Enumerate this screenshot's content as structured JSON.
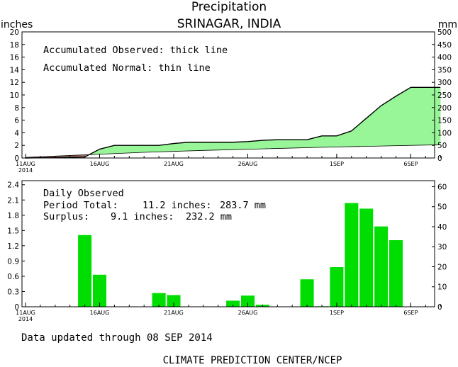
{
  "header": {
    "title": "Precipitation",
    "subtitle": "SRINAGAR, INDIA"
  },
  "colors": {
    "observed_fill": "#98f598",
    "deficit_fill": "#b07a6e",
    "daily_bar": "#00dd00",
    "axis": "#000000"
  },
  "chart_data": [
    {
      "type": "area",
      "name": "accumulated",
      "ylabel_left": "inches",
      "ylabel_right": "mm",
      "left_ticks": [
        "0",
        "2",
        "4",
        "6",
        "8",
        "10",
        "12",
        "14",
        "16",
        "18",
        "20"
      ],
      "right_ticks": [
        "0",
        "50",
        "100",
        "150",
        "200",
        "250",
        "300",
        "350",
        "400",
        "450",
        "500"
      ],
      "ylim_inches": [
        0,
        20
      ],
      "ylim_mm": [
        0,
        500
      ],
      "x_ticks": [
        {
          "day": 0,
          "label": "11AUG",
          "sub": "2014"
        },
        {
          "day": 5,
          "label": "16AUG",
          "sub": ""
        },
        {
          "day": 10,
          "label": "21AUG",
          "sub": ""
        },
        {
          "day": 15,
          "label": "26AUG",
          "sub": ""
        },
        {
          "day": 21,
          "label": "1SEP",
          "sub": ""
        },
        {
          "day": 26,
          "label": "6SEP",
          "sub": ""
        }
      ],
      "annotations": [
        "Accumulated Observed: thick line",
        "Accumulated Normal: thin line"
      ],
      "observed": [
        [
          0,
          0
        ],
        [
          1,
          0.04
        ],
        [
          2,
          0.08
        ],
        [
          3,
          0.12
        ],
        [
          4,
          0.16
        ],
        [
          5,
          1.4
        ],
        [
          6,
          2.0
        ],
        [
          7,
          2.0
        ],
        [
          8,
          2.0
        ],
        [
          9,
          2.0
        ],
        [
          10,
          2.3
        ],
        [
          11,
          2.5
        ],
        [
          12,
          2.5
        ],
        [
          13,
          2.5
        ],
        [
          14,
          2.5
        ],
        [
          15,
          2.6
        ],
        [
          16,
          2.8
        ],
        [
          17,
          2.9
        ],
        [
          18,
          2.9
        ],
        [
          19,
          2.9
        ],
        [
          20,
          3.5
        ],
        [
          21,
          3.5
        ],
        [
          22,
          4.3
        ],
        [
          23,
          6.3
        ],
        [
          24,
          8.3
        ],
        [
          25,
          9.8
        ],
        [
          26,
          11.2
        ],
        [
          27,
          11.2
        ],
        [
          28,
          11.2
        ]
      ],
      "normal": [
        [
          0,
          0.1
        ],
        [
          4,
          0.5
        ],
        [
          8,
          0.9
        ],
        [
          12,
          1.2
        ],
        [
          16,
          1.45
        ],
        [
          20,
          1.7
        ],
        [
          24,
          1.9
        ],
        [
          28,
          2.1
        ]
      ]
    },
    {
      "type": "bar",
      "name": "daily",
      "left_ticks": [
        "0",
        "0.3",
        "0.6",
        "0.9",
        "1.2",
        "1.5",
        "1.8",
        "2.1",
        "2.4"
      ],
      "right_ticks": [
        "0",
        "10",
        "20",
        "30",
        "40",
        "50",
        "60"
      ],
      "ylim_inches": [
        0,
        2.48
      ],
      "ylim_mm": [
        0,
        63
      ],
      "x_ticks": [
        {
          "day": 0,
          "label": "11AUG",
          "sub": "2014"
        },
        {
          "day": 5,
          "label": "16AUG",
          "sub": ""
        },
        {
          "day": 10,
          "label": "21AUG",
          "sub": ""
        },
        {
          "day": 15,
          "label": "26AUG",
          "sub": ""
        },
        {
          "day": 21,
          "label": "1SEP",
          "sub": ""
        },
        {
          "day": 26,
          "label": "6SEP",
          "sub": ""
        }
      ],
      "text": {
        "label": "Daily Observed",
        "total_label": "Period Total:",
        "total_in": "11.2 inches:",
        "total_mm": "283.7 mm",
        "surplus_label": "Surplus:",
        "surplus_in": "9.1 inches:",
        "surplus_mm": "232.2 mm"
      },
      "bars": [
        {
          "day": 4,
          "value": 1.41
        },
        {
          "day": 5,
          "value": 0.63
        },
        {
          "day": 9,
          "value": 0.27
        },
        {
          "day": 10,
          "value": 0.23
        },
        {
          "day": 14,
          "value": 0.12
        },
        {
          "day": 15,
          "value": 0.22
        },
        {
          "day": 16,
          "value": 0.04
        },
        {
          "day": 19,
          "value": 0.54
        },
        {
          "day": 20,
          "value": 0.01
        },
        {
          "day": 21,
          "value": 0.78
        },
        {
          "day": 22,
          "value": 2.04
        },
        {
          "day": 23,
          "value": 1.93
        },
        {
          "day": 24,
          "value": 1.58
        },
        {
          "day": 25,
          "value": 1.31
        }
      ]
    }
  ],
  "footer": {
    "updated": "Data updated through 08 SEP 2014",
    "credit": "CLIMATE PREDICTION CENTER/NCEP"
  }
}
